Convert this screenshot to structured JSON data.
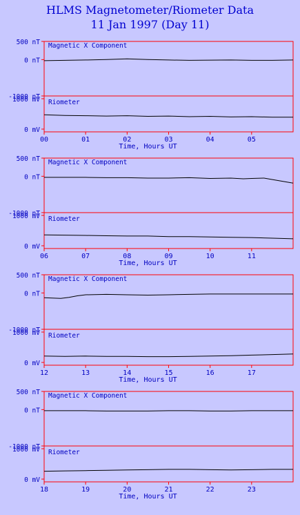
{
  "header": {
    "title": "HLMS Magnetometer/Riometer Data",
    "subtitle": "11 Jan 1997 (Day 11)"
  },
  "colors": {
    "background": "#c8c8ff",
    "frame": "#ff0000",
    "text": "#0000c0",
    "trace": "#000000"
  },
  "chart_data": [
    {
      "type": "line",
      "hours": [
        "00",
        "01",
        "02",
        "03",
        "04",
        "05"
      ],
      "xlabel": "Time, Hours UT",
      "magnetic": {
        "label": "Magnetic X Component",
        "ticks": [
          "500 nT",
          "0 nT",
          "-1000 nT"
        ],
        "ylim": [
          -1000,
          500
        ],
        "x": [
          0,
          0.5,
          1,
          1.5,
          2,
          2.5,
          3,
          3.5,
          4,
          4.5,
          5,
          5.5,
          6
        ],
        "values": [
          -30,
          -20,
          -10,
          0,
          20,
          0,
          -10,
          -20,
          -15,
          -10,
          -20,
          -20,
          -10
        ]
      },
      "riometer": {
        "label": "Riometer",
        "ticks": [
          "1000 mV",
          "0 mV"
        ],
        "ylim": [
          0,
          1000
        ],
        "x": [
          0,
          0.5,
          1,
          1.5,
          2,
          2.5,
          3,
          3.5,
          4,
          4.5,
          5,
          5.5,
          6
        ],
        "values": [
          470,
          450,
          440,
          430,
          440,
          420,
          430,
          410,
          420,
          400,
          410,
          390,
          390
        ]
      }
    },
    {
      "type": "line",
      "hours": [
        "06",
        "07",
        "08",
        "09",
        "10",
        "11"
      ],
      "xlabel": "Time, Hours UT",
      "magnetic": {
        "label": "Magnetic X Component",
        "ticks": [
          "500 nT",
          "0 nT",
          "-1000 nT"
        ],
        "ylim": [
          -1000,
          500
        ],
        "x": [
          6,
          6.5,
          7,
          7.5,
          8,
          8.5,
          9,
          9.5,
          10,
          10.5,
          10.8,
          11,
          11.3,
          11.6,
          12
        ],
        "values": [
          -30,
          -30,
          -30,
          -40,
          -40,
          -50,
          -50,
          -40,
          -60,
          -50,
          -70,
          -60,
          -50,
          -110,
          -190
        ]
      },
      "riometer": {
        "label": "Riometer",
        "ticks": [
          "1000 mV",
          "0 mV"
        ],
        "ylim": [
          0,
          1000
        ],
        "x": [
          6,
          6.5,
          7,
          7.5,
          8,
          8.5,
          9,
          9.5,
          10,
          10.5,
          11,
          11.5,
          12
        ],
        "values": [
          360,
          350,
          340,
          330,
          320,
          320,
          300,
          300,
          290,
          280,
          270,
          250,
          230
        ]
      }
    },
    {
      "type": "line",
      "hours": [
        "12",
        "13",
        "14",
        "15",
        "16",
        "17"
      ],
      "xlabel": "Time, Hours UT",
      "magnetic": {
        "label": "Magnetic X Component",
        "ticks": [
          "500 nT",
          "0 nT",
          "-1000 nT"
        ],
        "ylim": [
          -1000,
          500
        ],
        "x": [
          12,
          12.2,
          12.4,
          12.6,
          12.8,
          13,
          13.5,
          14,
          14.5,
          15,
          15.5,
          16,
          17,
          18
        ],
        "values": [
          -130,
          -140,
          -150,
          -120,
          -80,
          -50,
          -40,
          -50,
          -60,
          -50,
          -40,
          -30,
          -30,
          -30
        ]
      },
      "riometer": {
        "label": "Riometer",
        "ticks": [
          "1000 mV",
          "0 mV"
        ],
        "ylim": [
          0,
          1000
        ],
        "x": [
          12,
          12.5,
          13,
          13.5,
          14,
          14.5,
          15,
          15.5,
          16,
          16.5,
          17,
          17.5,
          18
        ],
        "values": [
          210,
          200,
          210,
          200,
          200,
          190,
          190,
          200,
          210,
          220,
          240,
          260,
          280
        ]
      }
    },
    {
      "type": "line",
      "hours": [
        "18",
        "19",
        "20",
        "21",
        "22",
        "23"
      ],
      "xlabel": "Time, Hours UT",
      "magnetic": {
        "label": "Magnetic X Component",
        "ticks": [
          "500 nT",
          "0 nT",
          "-1000 nT"
        ],
        "ylim": [
          -1000,
          500
        ],
        "x": [
          18,
          18.5,
          19,
          19.5,
          20,
          20.5,
          21,
          21.5,
          22,
          22.5,
          23,
          23.5,
          24
        ],
        "values": [
          -30,
          -30,
          -30,
          -40,
          -40,
          -40,
          -30,
          -30,
          -40,
          -40,
          -30,
          -30,
          -30
        ]
      },
      "riometer": {
        "label": "Riometer",
        "ticks": [
          "1000 mV",
          "0 mV"
        ],
        "ylim": [
          0,
          1000
        ],
        "x": [
          18,
          18.5,
          19,
          19.5,
          20,
          20.5,
          21,
          21.5,
          22,
          22.5,
          23,
          23.5,
          24
        ],
        "values": [
          260,
          270,
          280,
          290,
          300,
          310,
          320,
          320,
          310,
          300,
          310,
          320,
          320
        ]
      }
    }
  ]
}
